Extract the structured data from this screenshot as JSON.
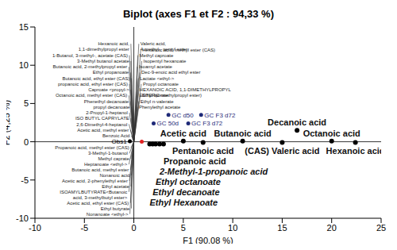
{
  "chart_data": {
    "type": "scatter",
    "title": "Biplot (axes F1 et F2 : 94,33 %)",
    "x_label": "F1 (90,08 %)",
    "y_label": "F2 (4,25 %)",
    "xlim": [
      -10,
      25
    ],
    "ylim": [
      -10,
      15
    ],
    "xticks": [
      -10,
      -5,
      0,
      5,
      10,
      15,
      20,
      25
    ],
    "yticks": [
      -10,
      -5,
      0,
      5,
      10,
      15
    ],
    "vectors": [
      {
        "label": "Valeric acid, 4-methyl-, pentyl ester",
        "x": 0.5,
        "y": 12.8
      },
      {
        "label": "Hexanoic acid, methyl ester (CAS)",
        "x": 0.7,
        "y": 12.05
      },
      {
        "label": "Methyl caproate",
        "x": 0.4,
        "y": 11.3
      },
      {
        "label": "Isopentyl hexanoate",
        "x": 0.8,
        "y": 10.55
      },
      {
        "label": "Isoamyl acetate",
        "x": 0.35,
        "y": 9.8
      },
      {
        "label": "Dec-9-enoic acid ethyl ester",
        "x": 0.6,
        "y": 9.05
      },
      {
        "label": "Lactate <ethyl->",
        "x": 0.45,
        "y": 8.3
      },
      {
        "label": "Propyl octanoate",
        "x": 0.75,
        "y": 7.55
      },
      {
        "label": "HEXANOIC ACID, 1,1-DIMETHYLPROPYL ESTER(2-methylpropyl ester)",
        "x": 0.4,
        "y": 6.8
      },
      {
        "label": "Ethyl laurate",
        "x": 0.65,
        "y": 6.05
      },
      {
        "label": "Ethyl n-valerate",
        "x": 0.5,
        "y": 5.3
      },
      {
        "label": "Phenylethyl acetate",
        "x": 0.35,
        "y": 4.55
      },
      {
        "label": "Hexanoic acid, 1,1-dimethylpropyl ester",
        "x": -0.3,
        "y": 12.8
      },
      {
        "label": "1-Butanol, 3-methyl-, acetate (CAS)",
        "x": -0.45,
        "y": 11.3
      },
      {
        "label": "3-Methyl butanol acetate",
        "x": -0.3,
        "y": 10.55
      },
      {
        "label": "Butanoic acid, 2-methylpropyl ester",
        "x": -0.5,
        "y": 9.8
      },
      {
        "label": "Ethyl propanoate",
        "x": -0.35,
        "y": 9.05
      },
      {
        "label": "Butanoic acid, ethyl ester (CAS)",
        "x": -0.25,
        "y": 8.3
      },
      {
        "label": "propanoic acid, ethyl ester (CAS)",
        "x": -0.45,
        "y": 7.55
      },
      {
        "label": "Caproate <propyl->",
        "x": -0.3,
        "y": 6.8
      },
      {
        "label": "Octanoic acid, methyl ester (CAS)",
        "x": -0.5,
        "y": 6.05
      },
      {
        "label": "Phenethyl decanoate",
        "x": -0.35,
        "y": 5.3
      },
      {
        "label": "propyl decanoate",
        "x": -0.25,
        "y": 4.55
      },
      {
        "label": "2-Propyl-1-heptanol",
        "x": -0.45,
        "y": 3.8
      },
      {
        "label": "ISO BUTYL CAPRYLATE",
        "x": -0.3,
        "y": 3.05
      },
      {
        "label": "2,6-Dimethyl-4-heptanol",
        "x": -0.5,
        "y": 2.3
      },
      {
        "label": "Acetic acid, methyl ester",
        "x": -0.35,
        "y": 1.55
      },
      {
        "label": "Benzoic Acid",
        "x": -0.25,
        "y": 0.8
      },
      {
        "label": "Propanoic acid, methyl ester (CAS)",
        "x": -0.3,
        "y": -0.8
      },
      {
        "label": "3-Methyl-1-butanol",
        "x": -0.45,
        "y": -1.52
      },
      {
        "label": "Methyl caprate",
        "x": -0.3,
        "y": -2.24
      },
      {
        "label": "Heptanoate <ethyl->",
        "x": -0.5,
        "y": -2.96
      },
      {
        "label": "Butanoic acid, methyl ester",
        "x": -0.35,
        "y": -3.68
      },
      {
        "label": "Nonanoic acid",
        "x": -0.25,
        "y": -4.4
      },
      {
        "label": "Acetic acid, 2-phenylethyl ester",
        "x": -0.45,
        "y": -5.12
      },
      {
        "label": "Ethyl acetate",
        "x": -0.3,
        "y": -5.84
      },
      {
        "label": "ISOAMYLBUTYRATE<Butanoic acid, 3-methylbutyl ester>",
        "x": -0.5,
        "y": -6.56
      },
      {
        "label": "Acetic acid, ethyl ester (CAS)",
        "x": -0.35,
        "y": -8.0
      },
      {
        "label": "Ethyl butyrate",
        "x": -0.25,
        "y": -8.72
      },
      {
        "label": "Nonanoate <ethyl->",
        "x": -0.4,
        "y": -9.44
      }
    ],
    "points": [
      {
        "label": "Acetic acid",
        "x": 5,
        "y": 0.1
      },
      {
        "label": "Butanoic acid",
        "x": 11,
        "y": 0.1
      },
      {
        "label": "Decanoic acid",
        "x": 16.5,
        "y": 1.5
      },
      {
        "label": "Octanoic acid",
        "x": 20,
        "y": 0.1
      },
      {
        "label": "Pentanoic acid",
        "x": 7,
        "y": -0.1
      },
      {
        "label": "(CAS) Valeric acid",
        "x": 15,
        "y": -0.1
      },
      {
        "label": "Hexanoic acid",
        "x": 22.4,
        "y": -0.1
      }
    ],
    "points_listed_below": [
      {
        "label": "Propanoic acid",
        "x": 3.0,
        "y": -0.3
      },
      {
        "label": "2-Methyl-1-propanoic acid",
        "x": 2.6,
        "y": -0.3
      },
      {
        "label": "Ethyl octanoate",
        "x": 2.2,
        "y": -0.3
      },
      {
        "label": "Ethyl decanoate",
        "x": 1.9,
        "y": -0.3
      },
      {
        "label": "Ethyl Hexanoate",
        "x": 1.6,
        "y": -0.3
      }
    ],
    "observations": [
      {
        "label": "GC d50",
        "x": 3.5,
        "y": 3.5,
        "color": "#1f2a78"
      },
      {
        "label": "GC F3 d72",
        "x": 6.8,
        "y": 3.5,
        "color": "#1f2a78"
      },
      {
        "label": "GC 50d",
        "x": 2.0,
        "y": 2.4,
        "color": "#1f2a78"
      },
      {
        "label": "GC F3 d72",
        "x": 5.5,
        "y": 2.4,
        "color": "#1f2a78"
      },
      {
        "label": "Obs1",
        "x": -0.4,
        "y": 0.05,
        "color": "#000000"
      },
      {
        "label": null,
        "x": 0.8,
        "y": 0.0,
        "color": "#e02020"
      }
    ]
  }
}
